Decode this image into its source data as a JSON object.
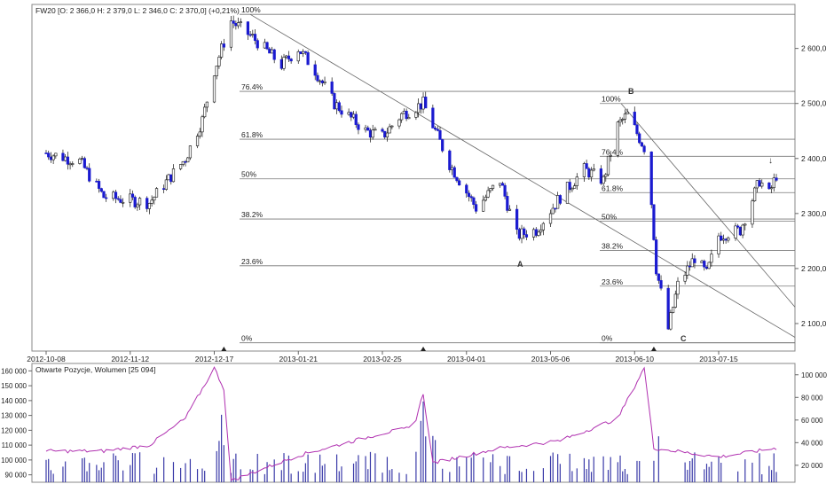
{
  "chart_data": [
    {
      "type": "candlestick",
      "title": "FW20 [O: 2 366,0  H: 2 379,0  L: 2 346,0  C: 2 370,0] (+0,21%)",
      "x_tick_labels": [
        "2012-10-08",
        "2012-11-12",
        "2012-12-17",
        "2013-01-21",
        "2013-02-25",
        "2013-04-01",
        "2013-05-06",
        "2013-06-10",
        "2013-07-15"
      ],
      "y_tick_labels": [
        "2 100,0",
        "2 200,0",
        "2 300,0",
        "2 400,0",
        "2 500,0",
        "2 600,0"
      ],
      "ylim": [
        2050,
        2680
      ],
      "price_keypoints": [
        [
          "2012-10-08",
          2410
        ],
        [
          "2012-10-22",
          2395
        ],
        [
          "2012-11-01",
          2330
        ],
        [
          "2012-11-20",
          2320
        ],
        [
          "2012-12-05",
          2400
        ],
        [
          "2012-12-12",
          2470
        ],
        [
          "2012-12-17",
          2560
        ],
        [
          "2012-12-24",
          2650
        ],
        [
          "2013-01-02",
          2620
        ],
        [
          "2013-01-14",
          2570
        ],
        [
          "2013-01-21",
          2600
        ],
        [
          "2013-01-28",
          2560
        ],
        [
          "2013-02-05",
          2500
        ],
        [
          "2013-02-18",
          2450
        ],
        [
          "2013-02-25",
          2440
        ],
        [
          "2013-03-05",
          2480
        ],
        [
          "2013-03-14",
          2500
        ],
        [
          "2013-03-25",
          2390
        ],
        [
          "2013-04-05",
          2310
        ],
        [
          "2013-04-15",
          2360
        ],
        [
          "2013-04-22",
          2260
        ],
        [
          "2013-04-30",
          2270
        ],
        [
          "2013-05-10",
          2330
        ],
        [
          "2013-05-20",
          2380
        ],
        [
          "2013-05-28",
          2360
        ],
        [
          "2013-06-03",
          2460
        ],
        [
          "2013-06-07",
          2480
        ],
        [
          "2013-06-14",
          2420
        ],
        [
          "2013-06-17",
          2320
        ],
        [
          "2013-06-19",
          2200
        ],
        [
          "2013-06-24",
          2090
        ],
        [
          "2013-06-28",
          2170
        ],
        [
          "2013-07-05",
          2220
        ],
        [
          "2013-07-10",
          2190
        ],
        [
          "2013-07-15",
          2260
        ],
        [
          "2013-07-24",
          2270
        ],
        [
          "2013-08-01",
          2360
        ],
        [
          "2013-08-05",
          2335
        ],
        [
          "2013-08-08",
          2370
        ]
      ],
      "fibonacci_left": {
        "labels": [
          "100%",
          "76.4%",
          "61.8%",
          "50%",
          "38.2%",
          "23.6%",
          "0%"
        ],
        "prices": [
          2662,
          2522,
          2435,
          2363,
          2290,
          2205,
          2065
        ]
      },
      "fibonacci_right": {
        "labels": [
          "100%",
          "76.4%",
          "61.8%",
          "50%",
          "38.2%",
          "23.6%",
          "0%"
        ],
        "prices": [
          2500,
          2404,
          2338,
          2286,
          2233,
          2168,
          2065
        ]
      },
      "wave_labels": [
        "A",
        "B",
        "C"
      ],
      "marker_symbol": "↓"
    },
    {
      "type": "bar+line",
      "title": "Otwarte Pozycje, Wolumen [25 094]",
      "left_axis_labels": [
        "90 000",
        "100 000",
        "110 000",
        "120 000",
        "130 000",
        "140 000",
        "150 000",
        "160 000"
      ],
      "left_ylim": [
        85000,
        165000
      ],
      "right_axis_labels": [
        "20 000",
        "40 000",
        "60 000",
        "80 000",
        "100 000"
      ],
      "right_ylim": [
        5000,
        110000
      ],
      "open_interest_keypoints": [
        [
          "2012-10-08",
          106000
        ],
        [
          "2012-11-01",
          106000
        ],
        [
          "2012-11-20",
          110000
        ],
        [
          "2012-12-05",
          128000
        ],
        [
          "2012-12-17",
          162000
        ],
        [
          "2012-12-21",
          148000
        ],
        [
          "2012-12-24",
          86000
        ],
        [
          "2013-01-21",
          103000
        ],
        [
          "2013-02-25",
          118000
        ],
        [
          "2013-03-10",
          122000
        ],
        [
          "2013-03-14",
          145000
        ],
        [
          "2013-03-18",
          98000
        ],
        [
          "2013-04-15",
          108000
        ],
        [
          "2013-05-10",
          113000
        ],
        [
          "2013-06-03",
          128000
        ],
        [
          "2013-06-14",
          162000
        ],
        [
          "2013-06-18",
          108000
        ],
        [
          "2013-07-15",
          102000
        ],
        [
          "2013-08-08",
          108000
        ]
      ]
    }
  ]
}
